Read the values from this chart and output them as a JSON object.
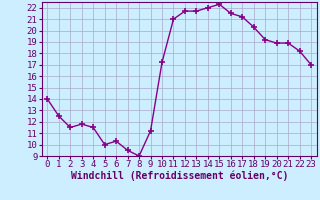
{
  "x": [
    0,
    1,
    2,
    3,
    4,
    5,
    6,
    7,
    8,
    9,
    10,
    11,
    12,
    13,
    14,
    15,
    16,
    17,
    18,
    19,
    20,
    21,
    22,
    23
  ],
  "y": [
    14,
    12.5,
    11.5,
    11.8,
    11.5,
    10.0,
    10.3,
    9.5,
    9.0,
    11.2,
    17.2,
    21.0,
    21.7,
    21.7,
    22.0,
    22.3,
    21.5,
    21.2,
    20.3,
    19.2,
    18.9,
    18.9,
    18.2,
    17.0
  ],
  "line_color": "#880088",
  "marker_color": "#880088",
  "bg_color": "#cceeff",
  "grid_color": "#aaaacc",
  "xlabel": "Windchill (Refroidissement éolien,°C)",
  "xlim": [
    -0.5,
    23.5
  ],
  "ylim": [
    9,
    22.5
  ],
  "yticks": [
    9,
    10,
    11,
    12,
    13,
    14,
    15,
    16,
    17,
    18,
    19,
    20,
    21,
    22
  ],
  "xticks": [
    0,
    1,
    2,
    3,
    4,
    5,
    6,
    7,
    8,
    9,
    10,
    11,
    12,
    13,
    14,
    15,
    16,
    17,
    18,
    19,
    20,
    21,
    22,
    23
  ],
  "axis_color": "#660066",
  "tick_color": "#660066",
  "font_size": 6.5,
  "xlabel_fontsize": 7,
  "marker_size": 4,
  "line_width": 1.0
}
